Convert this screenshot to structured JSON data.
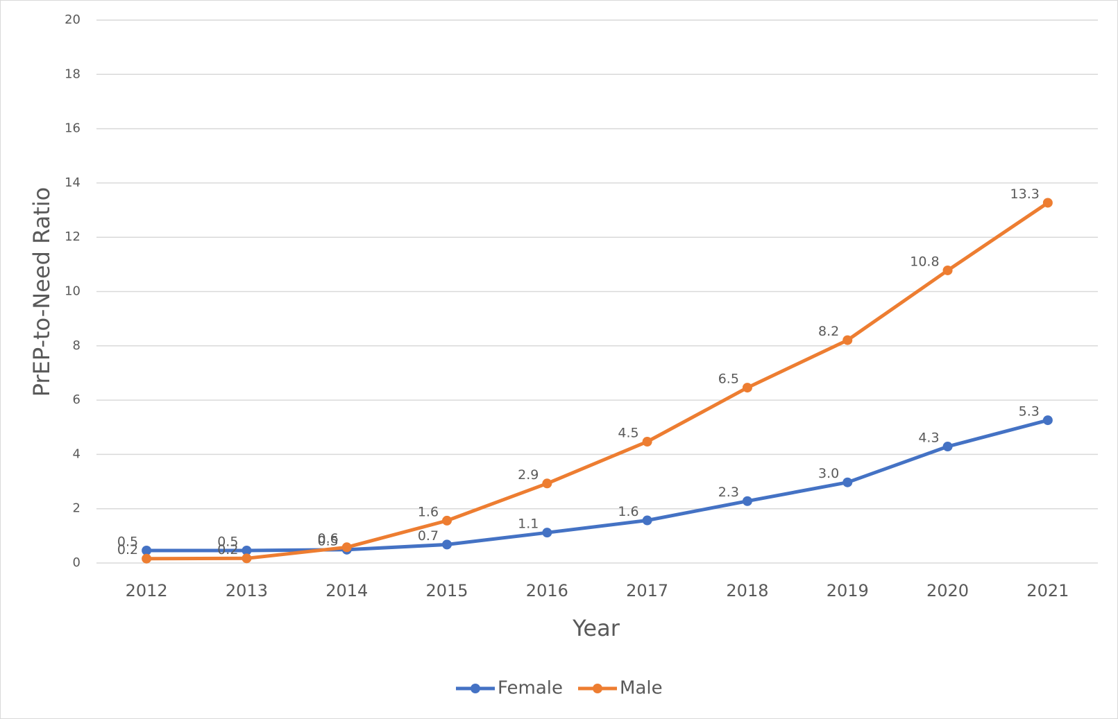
{
  "chart_data": {
    "type": "line",
    "x_label": "Year",
    "y_label": "PrEP-to-Need Ratio",
    "categories": [
      "2012",
      "2013",
      "2014",
      "2015",
      "2016",
      "2017",
      "2018",
      "2019",
      "2020",
      "2021"
    ],
    "series": [
      {
        "name": "Female",
        "color": "#4472c4",
        "values": [
          0.46,
          0.46,
          0.49,
          0.68,
          1.12,
          1.57,
          2.28,
          2.97,
          4.29,
          5.26
        ],
        "value_labels": [
          "0.5",
          "0.5",
          "0.5",
          "0.7",
          "1.1",
          "1.6",
          "2.3",
          "3.0",
          "4.3",
          "5.3"
        ]
      },
      {
        "name": "Male",
        "color": "#ed7d31",
        "values": [
          0.16,
          0.17,
          0.58,
          1.56,
          2.93,
          4.47,
          6.46,
          8.21,
          10.78,
          13.27
        ],
        "value_labels": [
          "0.2",
          "0.2",
          "0.6",
          "1.6",
          "2.9",
          "4.5",
          "6.5",
          "8.2",
          "10.8",
          "13.3"
        ]
      }
    ],
    "ylim": [
      0,
      20
    ],
    "yticks": [
      0,
      2,
      4,
      6,
      8,
      10,
      12,
      14,
      16,
      18,
      20
    ],
    "grid": true,
    "legend": "bottom"
  }
}
